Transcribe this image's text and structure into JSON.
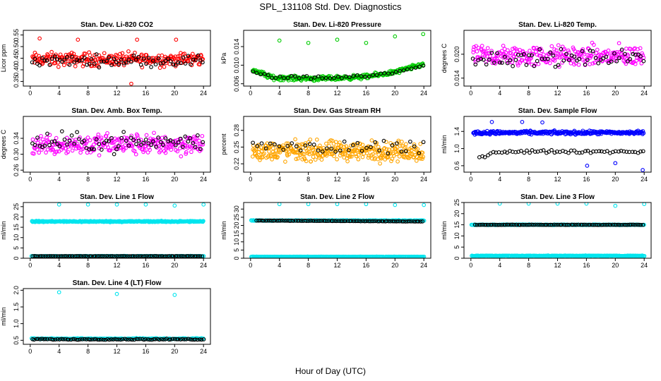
{
  "figure": {
    "title": "SPL_131108  Std. Dev. Diagnostics",
    "xlabel": "Hour of Day (UTC)"
  },
  "colors": {
    "black": "#000000",
    "red": "#ff0000",
    "green": "#00cc00",
    "magenta": "#ff00ff",
    "orange": "#ffa500",
    "blue": "#0000ff",
    "cyan": "#00e5ee"
  },
  "chart_data": [
    {
      "type": "scatter",
      "title": "Stan. Dev. Li-820 CO2",
      "ylabel": "Licor ppm",
      "xlim": [
        0,
        24
      ],
      "ylim": [
        0.33,
        0.57
      ],
      "xticks": [
        0,
        4,
        8,
        12,
        16,
        20,
        24
      ],
      "yticks": [
        0.35,
        0.4,
        0.45,
        0.5,
        0.55
      ],
      "ytick_labels": [
        "0.35",
        "0.40",
        "0.45",
        "0.50",
        "0.55"
      ],
      "series": [
        {
          "color": "#ff0000",
          "n": 260,
          "x": [
            0.3,
            23.9
          ],
          "center": 0.445,
          "spread": 0.05,
          "outliers": [
            [
              1.3,
              0.535
            ],
            [
              6.6,
              0.53
            ],
            [
              14.8,
              0.53
            ],
            [
              20.2,
              0.53
            ],
            [
              14.0,
              0.34
            ]
          ]
        },
        {
          "color": "#000000",
          "n": 70,
          "x": [
            0.3,
            23.9
          ],
          "center": 0.44,
          "spread": 0.04
        }
      ]
    },
    {
      "type": "scatter",
      "title": "Stan. Dev. Li-820 Pressure",
      "ylabel": "kPa",
      "xlim": [
        0,
        24
      ],
      "ylim": [
        0.0055,
        0.0175
      ],
      "xticks": [
        0,
        4,
        8,
        12,
        16,
        20,
        24
      ],
      "yticks": [
        0.006,
        0.01,
        0.014
      ],
      "ytick_labels": [
        "0.006",
        "0.010",
        "0.014"
      ],
      "series": [
        {
          "color": "#00cc00",
          "n": 300,
          "x": [
            0.3,
            23.9
          ],
          "center": 0.0075,
          "spread": 0.0008,
          "trend": [
            [
              0,
              0.0092
            ],
            [
              3,
              0.0073
            ],
            [
              10,
              0.0071
            ],
            [
              16,
              0.0075
            ],
            [
              20,
              0.0085
            ],
            [
              24,
              0.0102
            ]
          ],
          "outliers": [
            [
              4.0,
              0.0153
            ],
            [
              8.0,
              0.0148
            ],
            [
              12.0,
              0.0155
            ],
            [
              16.0,
              0.0148
            ],
            [
              20.0,
              0.0162
            ],
            [
              23.9,
              0.0167
            ]
          ]
        },
        {
          "color": "#000000",
          "n": 45,
          "x": [
            0.3,
            23.9
          ],
          "center": 0.0077,
          "spread": 0.0006,
          "trend": [
            [
              0,
              0.0088
            ],
            [
              3,
              0.0074
            ],
            [
              10,
              0.0072
            ],
            [
              16,
              0.0076
            ],
            [
              20,
              0.0085
            ],
            [
              24,
              0.01
            ]
          ]
        }
      ]
    },
    {
      "type": "scatter",
      "title": "Stan. Dev. Li-820 Temp.",
      "ylabel": "degrees C",
      "xlim": [
        0,
        24
      ],
      "ylim": [
        0.012,
        0.026
      ],
      "xticks": [
        0,
        4,
        8,
        12,
        16,
        20,
        24
      ],
      "yticks": [
        0.014,
        0.02
      ],
      "ytick_labels": [
        "0.014",
        "0.020"
      ],
      "series": [
        {
          "color": "#ff00ff",
          "n": 280,
          "x": [
            0.3,
            23.9
          ],
          "center": 0.0195,
          "spread": 0.0045
        },
        {
          "color": "#000000",
          "n": 65,
          "x": [
            0.3,
            23.9
          ],
          "center": 0.019,
          "spread": 0.0035
        }
      ]
    },
    {
      "type": "scatter",
      "title": "Stan. Dev. Amb. Box Temp.",
      "ylabel": "degrees C",
      "xlim": [
        0,
        24
      ],
      "ylim": [
        0.255,
        0.395
      ],
      "xticks": [
        0,
        4,
        8,
        12,
        16,
        20,
        24
      ],
      "yticks": [
        0.26,
        0.3,
        0.34
      ],
      "ytick_labels": [
        "0.26",
        "0.30",
        "0.34"
      ],
      "series": [
        {
          "color": "#ff00ff",
          "n": 280,
          "x": [
            0.3,
            23.9
          ],
          "center": 0.325,
          "spread": 0.045
        },
        {
          "color": "#000000",
          "n": 70,
          "x": [
            0.3,
            23.9
          ],
          "center": 0.33,
          "spread": 0.04
        }
      ]
    },
    {
      "type": "scatter",
      "title": "Stan. Dev. Gas Stream RH",
      "ylabel": "percent",
      "xlim": [
        0,
        24
      ],
      "ylim": [
        0.205,
        0.305
      ],
      "xticks": [
        0,
        4,
        8,
        12,
        16,
        20,
        24
      ],
      "yticks": [
        0.22,
        0.25,
        0.28
      ],
      "ytick_labels": [
        "0.22",
        "0.25",
        "0.28"
      ],
      "series": [
        {
          "color": "#ffa500",
          "n": 360,
          "x": [
            0.3,
            23.9
          ],
          "center": 0.243,
          "spread": 0.03
        },
        {
          "color": "#000000",
          "n": 40,
          "x": [
            0.3,
            23.9
          ],
          "center": 0.25,
          "spread": 0.025
        }
      ]
    },
    {
      "type": "scatter",
      "title": "Stan. Dev. Sample Flow",
      "ylabel": "ml/min",
      "xlim": [
        0,
        24
      ],
      "ylim": [
        0.45,
        1.75
      ],
      "xticks": [
        0,
        4,
        8,
        12,
        16,
        20,
        24
      ],
      "yticks": [
        0.6,
        1.0,
        1.4
      ],
      "ytick_labels": [
        "0.6",
        "1.0",
        "1.4"
      ],
      "series": [
        {
          "color": "#0000ff",
          "n": 300,
          "x": [
            0.3,
            23.9
          ],
          "center": 1.37,
          "spread": 0.07,
          "outliers": [
            [
              2.9,
              1.62
            ],
            [
              7.1,
              1.62
            ],
            [
              9.9,
              1.61
            ],
            [
              16.1,
              0.6
            ],
            [
              20.0,
              0.66
            ],
            [
              23.8,
              0.5
            ]
          ]
        },
        {
          "color": "#000000",
          "n": 60,
          "x": [
            1.2,
            23.9
          ],
          "center": 0.93,
          "spread": 0.06,
          "trend": [
            [
              1,
              0.8
            ],
            [
              4,
              0.93
            ],
            [
              24,
              0.93
            ]
          ]
        }
      ]
    },
    {
      "type": "scatter",
      "title": "Stan. Dev. Line 1 Flow",
      "ylabel": "ml/min",
      "xlim": [
        0,
        24
      ],
      "ylim": [
        0,
        27
      ],
      "xticks": [
        0,
        4,
        8,
        12,
        16,
        20,
        24
      ],
      "yticks": [
        0,
        5,
        10,
        15,
        20,
        25
      ],
      "ytick_labels": [
        "0",
        "5",
        "10",
        "15",
        "20",
        "25"
      ],
      "series": [
        {
          "color": "#00e5ee",
          "n": 330,
          "x": [
            0.2,
            24.0
          ],
          "center": 17.8,
          "spread": 0.5,
          "outliers": [
            [
              4.0,
              26.0
            ],
            [
              8.0,
              26.0
            ],
            [
              12.0,
              26.0
            ],
            [
              16.0,
              26.0
            ],
            [
              20.0,
              25.5
            ],
            [
              24.0,
              26.0
            ]
          ]
        },
        {
          "color": "#00e5ee",
          "n": 250,
          "x": [
            0.2,
            24.0
          ],
          "center": 1.0,
          "spread": 0.2
        },
        {
          "color": "#000000",
          "n": 90,
          "x": [
            0.3,
            23.8
          ],
          "center": 1.0,
          "spread": 0.1
        }
      ]
    },
    {
      "type": "scatter",
      "title": "Stan. Dev. Line 2 Flow",
      "ylabel": "ml/min",
      "xlim": [
        0,
        24
      ],
      "ylim": [
        0,
        34
      ],
      "xticks": [
        0,
        4,
        8,
        12,
        16,
        20,
        24
      ],
      "yticks": [
        0,
        5,
        10,
        15,
        20,
        25,
        30
      ],
      "ytick_labels": [
        "0",
        "5",
        "10",
        "15",
        "20",
        "25",
        "30"
      ],
      "series": [
        {
          "color": "#00e5ee",
          "n": 260,
          "x": [
            0.1,
            24.0
          ],
          "center": 23.0,
          "spread": 0.3,
          "outliers": [
            [
              4.0,
              33.0
            ],
            [
              8.0,
              33.0
            ],
            [
              12.0,
              33.0
            ],
            [
              16.0,
              33.0
            ],
            [
              20.0,
              32.5
            ],
            [
              24.0,
              32.5
            ]
          ]
        },
        {
          "color": "#00e5ee",
          "n": 260,
          "x": [
            0.1,
            24.0
          ],
          "center": 0.9,
          "spread": 0.2
        },
        {
          "color": "#000000",
          "n": 90,
          "x": [
            0.8,
            23.8
          ],
          "center": 22.8,
          "spread": 0.15,
          "trend": [
            [
              0,
              23.0
            ],
            [
              24,
              22.4
            ]
          ]
        }
      ]
    },
    {
      "type": "scatter",
      "title": "Stan. Dev. Line 3 Flow",
      "ylabel": "ml/min",
      "xlim": [
        0,
        24
      ],
      "ylim": [
        0,
        25
      ],
      "xticks": [
        0,
        4,
        8,
        12,
        16,
        20,
        24
      ],
      "yticks": [
        0,
        5,
        10,
        15,
        20,
        25
      ],
      "ytick_labels": [
        "0",
        "5",
        "10",
        "15",
        "20",
        "25"
      ],
      "series": [
        {
          "color": "#00e5ee",
          "n": 260,
          "x": [
            0.1,
            24.0
          ],
          "center": 15.0,
          "spread": 0.25,
          "outliers": [
            [
              4.0,
              24.5
            ],
            [
              8.0,
              24.5
            ],
            [
              12.0,
              24.5
            ],
            [
              16.0,
              24.5
            ],
            [
              20.0,
              23.5
            ],
            [
              24.0,
              24.3
            ]
          ]
        },
        {
          "color": "#00e5ee",
          "n": 280,
          "x": [
            0.1,
            24.0
          ],
          "center": 1.1,
          "spread": 0.2
        },
        {
          "color": "#000000",
          "n": 90,
          "x": [
            0.6,
            23.8
          ],
          "center": 15.0,
          "spread": 0.12
        }
      ]
    },
    {
      "type": "scatter",
      "title": "Stan. Dev. Line 4 (LT) Flow",
      "ylabel": "ml/min",
      "xlim": [
        0,
        24
      ],
      "ylim": [
        0.38,
        2.05
      ],
      "xticks": [
        0,
        4,
        8,
        12,
        16,
        20,
        24
      ],
      "yticks": [
        0.5,
        1.0,
        1.5,
        2.0
      ],
      "ytick_labels": [
        "0.5",
        "1.0",
        "1.5",
        "2.0"
      ],
      "series": [
        {
          "color": "#00e5ee",
          "n": 180,
          "x": [
            0.2,
            24.0
          ],
          "center": 0.55,
          "spread": 0.025,
          "outliers": [
            [
              4.0,
              1.94
            ],
            [
              12.0,
              1.89
            ],
            [
              20.0,
              1.86
            ]
          ]
        },
        {
          "color": "#000000",
          "n": 90,
          "x": [
            0.3,
            24.0
          ],
          "center": 0.53,
          "spread": 0.025
        }
      ]
    }
  ]
}
